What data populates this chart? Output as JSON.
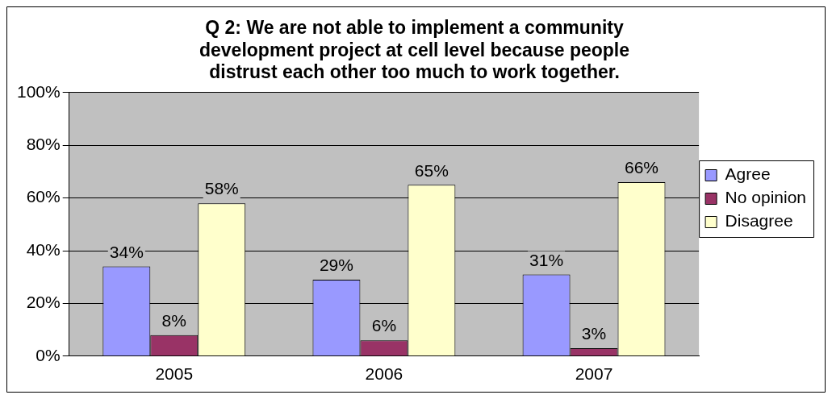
{
  "chart_data": {
    "type": "bar",
    "title": "Q 2: We are not able to implement a community development project at cell level because people distrust each other too much to work together.",
    "categories": [
      "2005",
      "2006",
      "2007"
    ],
    "series": [
      {
        "name": "Agree",
        "color": "#9999ff",
        "values": [
          34,
          29,
          31
        ],
        "value_labels": [
          "34%",
          "29%",
          "31%"
        ]
      },
      {
        "name": "No opinion",
        "color": "#993366",
        "values": [
          8,
          6,
          3
        ],
        "value_labels": [
          "8%",
          "6%",
          "3%"
        ]
      },
      {
        "name": "Disagree",
        "color": "#ffffcc",
        "values": [
          58,
          65,
          66
        ],
        "value_labels": [
          "58%",
          "65%",
          "66%"
        ]
      }
    ],
    "ylim": [
      0,
      100
    ],
    "yticks": [
      {
        "value": 0,
        "label": "0%"
      },
      {
        "value": 20,
        "label": "20%"
      },
      {
        "value": 40,
        "label": "40%"
      },
      {
        "value": 60,
        "label": "60%"
      },
      {
        "value": 80,
        "label": "80%"
      },
      {
        "value": 100,
        "label": "100%"
      }
    ],
    "grid": "y",
    "legend": "right"
  }
}
